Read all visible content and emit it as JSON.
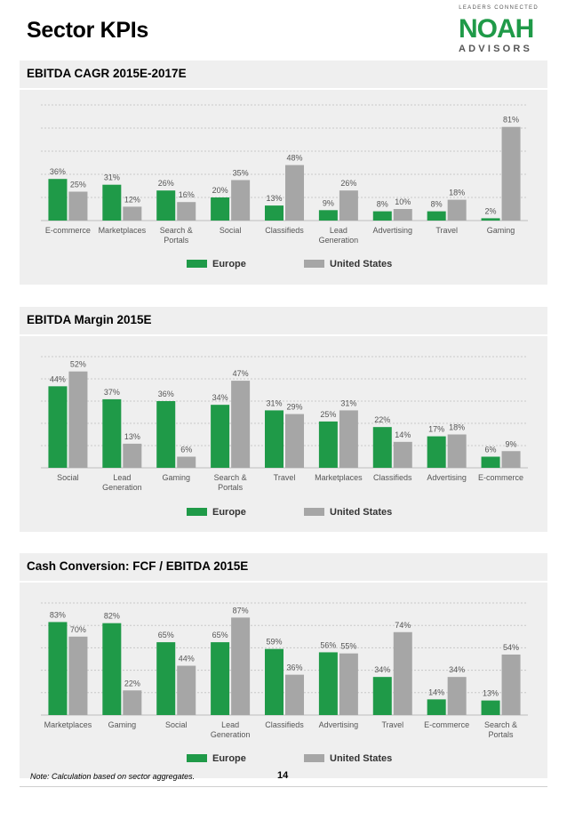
{
  "page": {
    "title": "Sector KPIs",
    "note": "Note: Calculation based on sector aggregates.",
    "page_number": "14"
  },
  "logo": {
    "tagline": "LEADERS CONNECTED",
    "name": "NOAH",
    "sub": "ADVISORS",
    "color": "#1f9a48"
  },
  "colors": {
    "europe": "#1f9a48",
    "united_states": "#a6a6a6"
  },
  "chart_data": [
    {
      "type": "bar",
      "title": "EBITDA CAGR 2015E-2017E",
      "categories": [
        "E-commerce",
        "Marketplaces",
        "Search &\nPortals",
        "Social",
        "Classifieds",
        "Lead\nGeneration",
        "Advertising",
        "Travel",
        "Gaming"
      ],
      "series": [
        {
          "name": "Europe",
          "values": [
            36,
            31,
            26,
            20,
            13,
            9,
            8,
            8,
            2
          ]
        },
        {
          "name": "United States",
          "values": [
            25,
            12,
            16,
            35,
            48,
            26,
            10,
            18,
            81
          ]
        }
      ],
      "value_suffix": "%",
      "ylim": [
        0,
        100
      ],
      "xlabel": "",
      "ylabel": "",
      "grid": true,
      "legend": "bottom-center"
    },
    {
      "type": "bar",
      "title": "EBITDA Margin 2015E",
      "categories": [
        "Social",
        "Lead\nGeneration",
        "Gaming",
        "Search &\nPortals",
        "Travel",
        "Marketplaces",
        "Classifieds",
        "Advertising",
        "E-commerce"
      ],
      "series": [
        {
          "name": "Europe",
          "values": [
            44,
            37,
            36,
            34,
            31,
            25,
            22,
            17,
            6
          ]
        },
        {
          "name": "United States",
          "values": [
            52,
            13,
            6,
            47,
            29,
            31,
            14,
            18,
            9
          ]
        }
      ],
      "value_suffix": "%",
      "ylim": [
        0,
        60
      ],
      "xlabel": "",
      "ylabel": "",
      "grid": true,
      "legend": "bottom-center"
    },
    {
      "type": "bar",
      "title": "Cash Conversion: FCF / EBITDA 2015E",
      "categories": [
        "Marketplaces",
        "Gaming",
        "Social",
        "Lead\nGeneration",
        "Classifieds",
        "Advertising",
        "Travel",
        "E-commerce",
        "Search &\nPortals"
      ],
      "series": [
        {
          "name": "Europe",
          "values": [
            83,
            82,
            65,
            65,
            59,
            56,
            34,
            14,
            13
          ]
        },
        {
          "name": "United States",
          "values": [
            70,
            22,
            44,
            87,
            36,
            55,
            74,
            34,
            54
          ]
        }
      ],
      "value_suffix": "%",
      "ylim": [
        0,
        100
      ],
      "xlabel": "",
      "ylabel": "",
      "grid": true,
      "legend": "bottom-center"
    }
  ]
}
